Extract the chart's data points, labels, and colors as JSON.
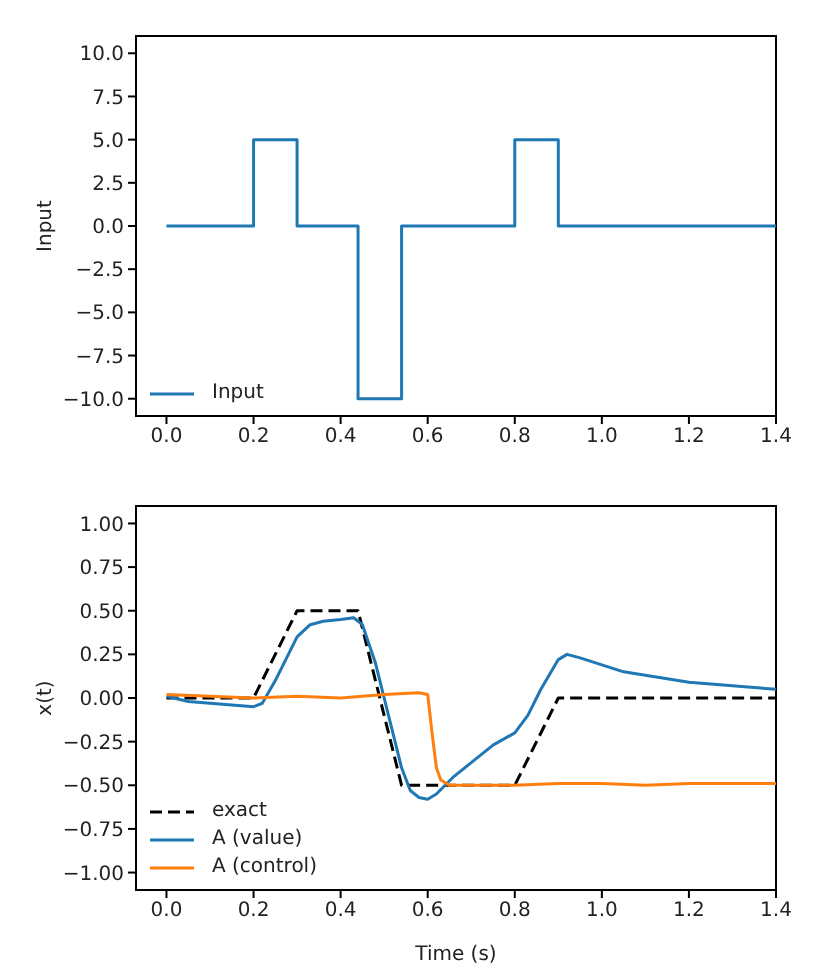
{
  "chart_data": [
    {
      "type": "line",
      "ylabel": "Input",
      "xlim": [
        -0.07,
        1.4
      ],
      "ylim": [
        -11,
        11
      ],
      "xticks": [
        {
          "value": 0,
          "label": "0.0"
        },
        {
          "value": 0.2,
          "label": "0.2"
        },
        {
          "value": 0.4,
          "label": "0.4"
        },
        {
          "value": 0.6,
          "label": "0.6"
        },
        {
          "value": 0.8,
          "label": "0.8"
        },
        {
          "value": 1,
          "label": "1.0"
        },
        {
          "value": 1.2,
          "label": "1.2"
        },
        {
          "value": 1.4,
          "label": "1.4"
        }
      ],
      "yticks": [
        {
          "value": -10,
          "label": "−10.0"
        },
        {
          "value": -7.5,
          "label": "−7.5"
        },
        {
          "value": -5,
          "label": "−5.0"
        },
        {
          "value": -2.5,
          "label": "−2.5"
        },
        {
          "value": 0,
          "label": "0.0"
        },
        {
          "value": 2.5,
          "label": "2.5"
        },
        {
          "value": 5,
          "label": "5.0"
        },
        {
          "value": 7.5,
          "label": "7.5"
        },
        {
          "value": 10,
          "label": "10.0"
        }
      ],
      "grid": false,
      "legend": "bottom left",
      "marker": "none",
      "series": [
        {
          "name": "Input",
          "color": "#1f77b4",
          "line_style": "solid",
          "x": [
            0,
            0.2,
            0.2,
            0.3,
            0.3,
            0.44,
            0.44,
            0.54,
            0.54,
            0.8,
            0.8,
            0.9,
            0.9,
            1.4
          ],
          "values": [
            0,
            0,
            5,
            5,
            0,
            0,
            -10,
            -10,
            0,
            0,
            5,
            5,
            0,
            0
          ]
        }
      ]
    },
    {
      "type": "line",
      "xlabel": "Time (s)",
      "ylabel": "x(t)",
      "xlim": [
        -0.07,
        1.4
      ],
      "ylim": [
        -1.1,
        1.1
      ],
      "xticks": [
        {
          "value": 0,
          "label": "0.0"
        },
        {
          "value": 0.2,
          "label": "0.2"
        },
        {
          "value": 0.4,
          "label": "0.4"
        },
        {
          "value": 0.6,
          "label": "0.6"
        },
        {
          "value": 0.8,
          "label": "0.8"
        },
        {
          "value": 1,
          "label": "1.0"
        },
        {
          "value": 1.2,
          "label": "1.2"
        },
        {
          "value": 1.4,
          "label": "1.4"
        }
      ],
      "yticks": [
        {
          "value": -1,
          "label": "−1.00"
        },
        {
          "value": -0.75,
          "label": "−0.75"
        },
        {
          "value": -0.5,
          "label": "−0.50"
        },
        {
          "value": -0.25,
          "label": "−0.25"
        },
        {
          "value": 0,
          "label": "0.00"
        },
        {
          "value": 0.25,
          "label": "0.25"
        },
        {
          "value": 0.5,
          "label": "0.50"
        },
        {
          "value": 0.75,
          "label": "0.75"
        },
        {
          "value": 1,
          "label": "1.00"
        }
      ],
      "grid": false,
      "legend": "bottom left",
      "marker": "none",
      "series": [
        {
          "name": "exact",
          "color": "#000000",
          "line_style": "dashed",
          "x": [
            0,
            0.2,
            0.3,
            0.44,
            0.54,
            0.8,
            0.9,
            1.4
          ],
          "values": [
            0,
            0,
            0.5,
            0.5,
            -0.5,
            -0.5,
            0,
            0
          ]
        },
        {
          "name": "A (value)",
          "color": "#1f77b4",
          "line_style": "solid",
          "x": [
            0,
            0.05,
            0.1,
            0.15,
            0.2,
            0.22,
            0.25,
            0.28,
            0.3,
            0.33,
            0.36,
            0.4,
            0.43,
            0.45,
            0.48,
            0.5,
            0.52,
            0.54,
            0.56,
            0.58,
            0.6,
            0.62,
            0.64,
            0.66,
            0.7,
            0.75,
            0.8,
            0.83,
            0.86,
            0.9,
            0.92,
            0.95,
            1,
            1.05,
            1.1,
            1.15,
            1.2,
            1.25,
            1.3,
            1.35,
            1.4
          ],
          "values": [
            0.01,
            -0.02,
            -0.03,
            -0.04,
            -0.05,
            -0.03,
            0.1,
            0.25,
            0.35,
            0.42,
            0.44,
            0.45,
            0.46,
            0.42,
            0.2,
            0,
            -0.2,
            -0.4,
            -0.53,
            -0.57,
            -0.58,
            -0.55,
            -0.5,
            -0.45,
            -0.37,
            -0.27,
            -0.2,
            -0.1,
            0.05,
            0.22,
            0.25,
            0.23,
            0.19,
            0.15,
            0.13,
            0.11,
            0.09,
            0.08,
            0.07,
            0.06,
            0.05
          ]
        },
        {
          "name": "A (control)",
          "color": "#ff7f0e",
          "line_style": "solid",
          "x": [
            0,
            0.1,
            0.2,
            0.3,
            0.4,
            0.5,
            0.58,
            0.6,
            0.61,
            0.62,
            0.63,
            0.65,
            0.7,
            0.8,
            0.9,
            1,
            1.1,
            1.2,
            1.3,
            1.4
          ],
          "values": [
            0.02,
            0.01,
            0,
            0.01,
            0,
            0.02,
            0.03,
            0.02,
            -0.2,
            -0.4,
            -0.47,
            -0.5,
            -0.5,
            -0.5,
            -0.49,
            -0.49,
            -0.5,
            -0.49,
            -0.49,
            -0.49
          ]
        }
      ]
    }
  ]
}
